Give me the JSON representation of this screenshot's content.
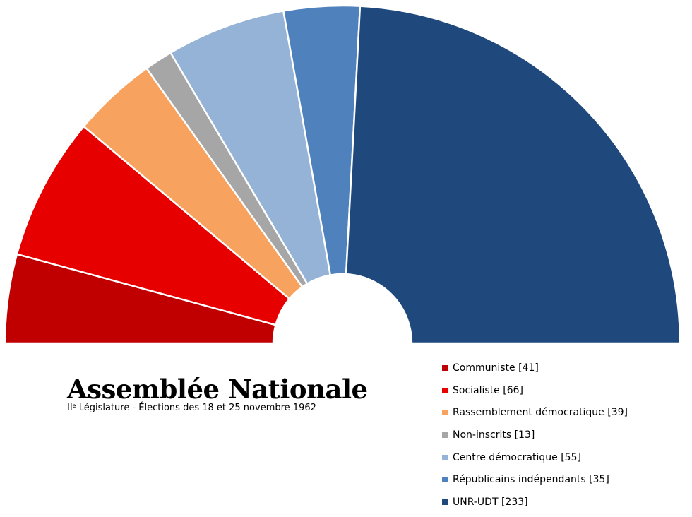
{
  "chart_data": {
    "type": "pie",
    "variant": "parliament-semicircle",
    "title": "Assemblée Nationale",
    "subtitle_ordinal": "II",
    "subtitle_ordinal_suffix": "e",
    "subtitle_rest": " Législature - Élections des 18 et 25 novembre 1962",
    "legend_placement": "bottom-right",
    "series": [
      {
        "name": "Communiste",
        "value": 41,
        "label": "Communiste [41]",
        "color": "#C00000"
      },
      {
        "name": "Socialiste",
        "value": 66,
        "label": "Socialiste [66]",
        "color": "#E60000"
      },
      {
        "name": "Rassemblement démocratique",
        "value": 39,
        "label": "Rassemblement démocratique [39]",
        "color": "#F7A35F"
      },
      {
        "name": "Non-inscrits",
        "value": 13,
        "label": "Non-inscrits [13]",
        "color": "#A6A6A6"
      },
      {
        "name": "Centre démocratique",
        "value": 55,
        "label": "Centre démocratique [55]",
        "color": "#95B3D7"
      },
      {
        "name": "Républicains indépendants",
        "value": 35,
        "label": "Républicains indépendants [35]",
        "color": "#4F81BD"
      },
      {
        "name": "UNR-UDT",
        "value": 233,
        "label": "UNR-UDT [233]",
        "color": "#1F497D"
      }
    ]
  }
}
